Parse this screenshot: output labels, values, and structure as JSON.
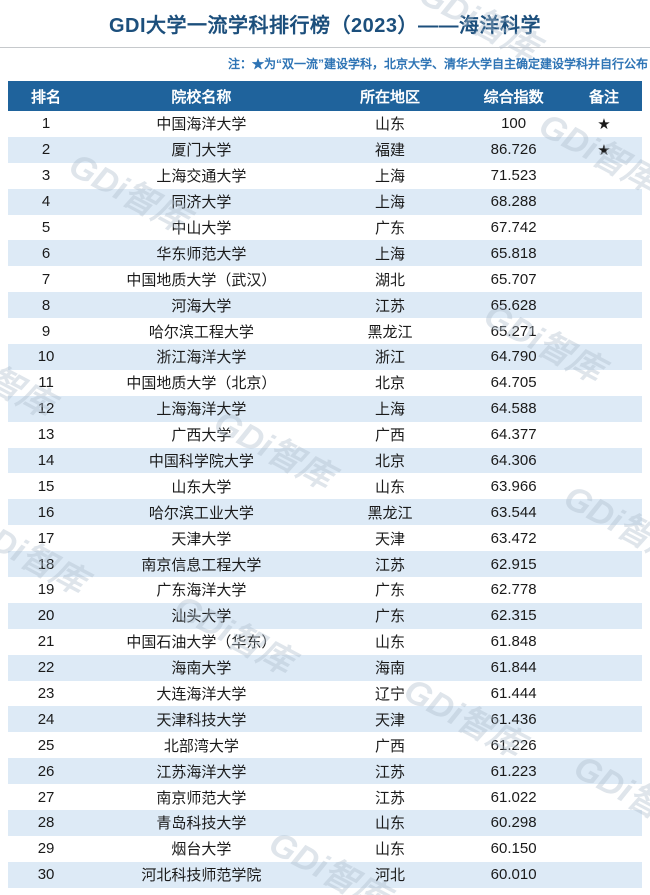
{
  "page": {
    "title": "GDI大学一流学科排行榜（2023）——海洋科学",
    "note": "注：★为“双一流”建设学科，北京大学、清华大学自主确定建设学科并自行公布",
    "watermark_text": "GDi智库"
  },
  "colors": {
    "header_bg": "#1f639c",
    "row_alt_bg": "#ddeaf6",
    "title_text": "#1c4f7c",
    "note_text": "#2e74b5",
    "body_text": "#1a1a1a"
  },
  "chart_data": {
    "type": "table",
    "title": "GDI大学一流学科排行榜（2023）——海洋科学",
    "columns": [
      "排名",
      "院校名称",
      "所在地区",
      "综合指数",
      "备注"
    ],
    "rows": [
      [
        "1",
        "中国海洋大学",
        "山东",
        "100",
        "★"
      ],
      [
        "2",
        "厦门大学",
        "福建",
        "86.726",
        "★"
      ],
      [
        "3",
        "上海交通大学",
        "上海",
        "71.523",
        ""
      ],
      [
        "4",
        "同济大学",
        "上海",
        "68.288",
        ""
      ],
      [
        "5",
        "中山大学",
        "广东",
        "67.742",
        ""
      ],
      [
        "6",
        "华东师范大学",
        "上海",
        "65.818",
        ""
      ],
      [
        "7",
        "中国地质大学（武汉）",
        "湖北",
        "65.707",
        ""
      ],
      [
        "8",
        "河海大学",
        "江苏",
        "65.628",
        ""
      ],
      [
        "9",
        "哈尔滨工程大学",
        "黑龙江",
        "65.271",
        ""
      ],
      [
        "10",
        "浙江海洋大学",
        "浙江",
        "64.790",
        ""
      ],
      [
        "11",
        "中国地质大学（北京）",
        "北京",
        "64.705",
        ""
      ],
      [
        "12",
        "上海海洋大学",
        "上海",
        "64.588",
        ""
      ],
      [
        "13",
        "广西大学",
        "广西",
        "64.377",
        ""
      ],
      [
        "14",
        "中国科学院大学",
        "北京",
        "64.306",
        ""
      ],
      [
        "15",
        "山东大学",
        "山东",
        "63.966",
        ""
      ],
      [
        "16",
        "哈尔滨工业大学",
        "黑龙江",
        "63.544",
        ""
      ],
      [
        "17",
        "天津大学",
        "天津",
        "63.472",
        ""
      ],
      [
        "18",
        "南京信息工程大学",
        "江苏",
        "62.915",
        ""
      ],
      [
        "19",
        "广东海洋大学",
        "广东",
        "62.778",
        ""
      ],
      [
        "20",
        "汕头大学",
        "广东",
        "62.315",
        ""
      ],
      [
        "21",
        "中国石油大学（华东）",
        "山东",
        "61.848",
        ""
      ],
      [
        "22",
        "海南大学",
        "海南",
        "61.844",
        ""
      ],
      [
        "23",
        "大连海洋大学",
        "辽宁",
        "61.444",
        ""
      ],
      [
        "24",
        "天津科技大学",
        "天津",
        "61.436",
        ""
      ],
      [
        "25",
        "北部湾大学",
        "广西",
        "61.226",
        ""
      ],
      [
        "26",
        "江苏海洋大学",
        "江苏",
        "61.223",
        ""
      ],
      [
        "27",
        "南京师范大学",
        "江苏",
        "61.022",
        ""
      ],
      [
        "28",
        "青岛科技大学",
        "山东",
        "60.298",
        ""
      ],
      [
        "29",
        "烟台大学",
        "山东",
        "60.150",
        ""
      ],
      [
        "30",
        "河北科技师范学院",
        "河北",
        "60.010",
        ""
      ]
    ]
  }
}
